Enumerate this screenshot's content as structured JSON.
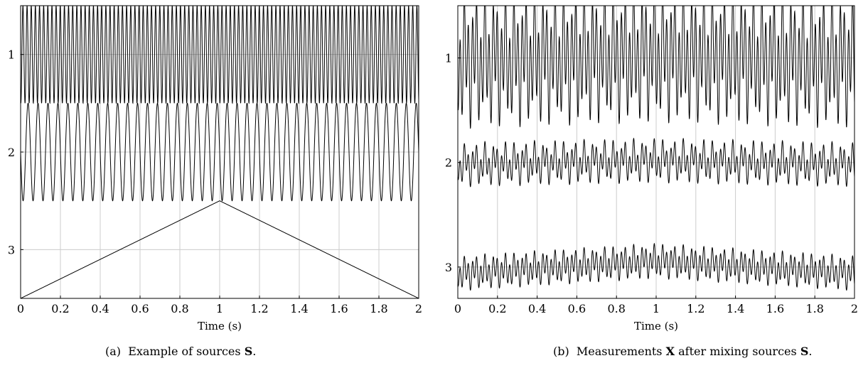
{
  "chart_data": [
    {
      "type": "line",
      "panel": "(a)",
      "caption": {
        "prefix": "(a)",
        "text": "Example of sources",
        "bold": "S",
        "suffix": "."
      },
      "xlabel": "Time (s)",
      "xlim": [
        0,
        2
      ],
      "xticks": [
        "0",
        "0.2",
        "0.4",
        "0.6",
        "0.8",
        "1",
        "1.2",
        "1.4",
        "1.6",
        "1.8",
        "2"
      ],
      "ylim": [
        0.5,
        3.5
      ],
      "yticks": [
        "1",
        "2",
        "3"
      ],
      "grid": true,
      "series": [
        {
          "channel": 1,
          "waveform": "sine",
          "frequency_hz": 48,
          "amplitude": 0.5
        },
        {
          "channel": 2,
          "waveform": "sine",
          "frequency_hz": 20,
          "amplitude": 0.5
        },
        {
          "channel": 3,
          "waveform": "triangle",
          "x": [
            0,
            1,
            2
          ],
          "offset_from_channel": [
            0.5,
            -0.5,
            0.5
          ]
        }
      ]
    },
    {
      "type": "line",
      "panel": "(b)",
      "caption": {
        "prefix": "(b)",
        "text": "Measurements",
        "bold1": "X",
        "text2": "after mixing sources",
        "bold2": "S",
        "suffix": "."
      },
      "xlabel": "Time (s)",
      "xlim": [
        0,
        2
      ],
      "xticks": [
        "0",
        "0.2",
        "0.4",
        "0.6",
        "0.8",
        "1",
        "1.2",
        "1.4",
        "1.6",
        "1.8",
        "2"
      ],
      "ylim": [
        0.5,
        3.3
      ],
      "yticks": [
        "1",
        "2",
        "3"
      ],
      "grid": true,
      "series": [
        {
          "channel": 1,
          "mix": [
            0.85,
            0.45,
            0.06
          ]
        },
        {
          "channel": 2,
          "mix": [
            0.25,
            0.18,
            0.04
          ]
        },
        {
          "channel": 3,
          "mix": [
            0.22,
            0.12,
            0.12
          ]
        }
      ]
    }
  ]
}
